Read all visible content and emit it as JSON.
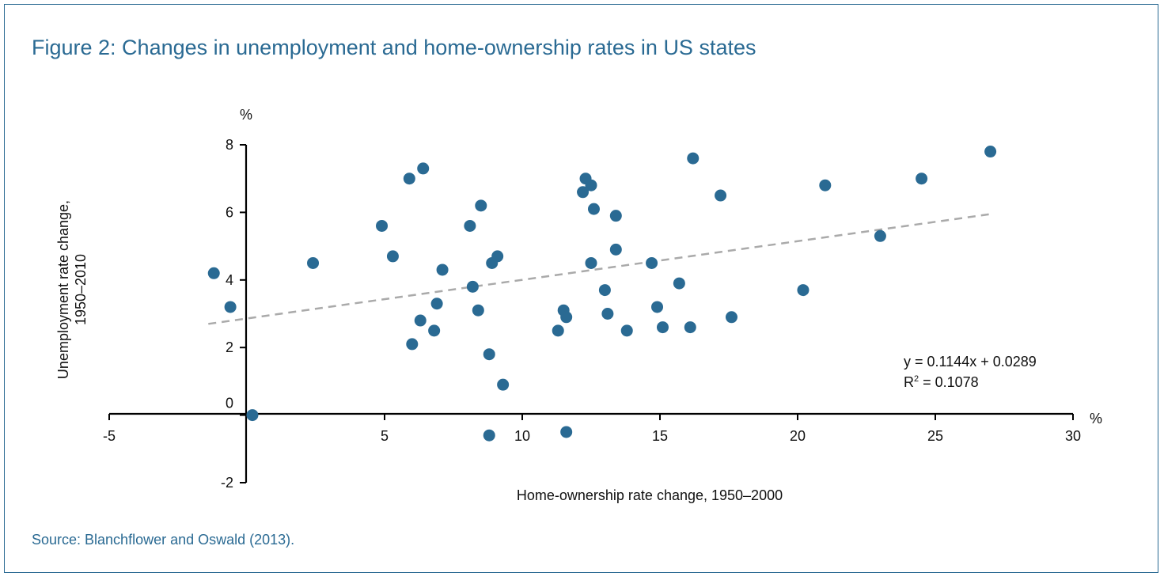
{
  "title": "Figure 2: Changes in unemployment and home-ownership rates in US states",
  "source": "Source: Blanchflower and Oswald (2013).",
  "colors": {
    "frame": "#2a6a93",
    "point": "#2a6a93",
    "trend": "#aaaaaa"
  },
  "chart_data": {
    "type": "scatter",
    "xlabel": "Home-ownership rate change, 1950–2000",
    "ylabel": [
      "Unemployment rate change,",
      "1950–2010"
    ],
    "x_unit": "%",
    "y_unit": "%",
    "xlim": [
      -5,
      30
    ],
    "ylim": [
      -2,
      8
    ],
    "x_ticks": [
      -5,
      5,
      10,
      15,
      20,
      25,
      30
    ],
    "y_ticks": [
      -2,
      0,
      2,
      4,
      6,
      8
    ],
    "trendline": {
      "equation": "y = 0.1144x + 0.0289",
      "r2_prefix": "R",
      "r2_sup": "2",
      "r2_value": " = 0.1078",
      "x_range": [
        -0.5,
        27
      ]
    },
    "points": [
      {
        "x": -1.2,
        "y": 4.2
      },
      {
        "x": -0.6,
        "y": 3.2
      },
      {
        "x": 0.2,
        "y": 0.0
      },
      {
        "x": 2.4,
        "y": 4.5
      },
      {
        "x": 4.9,
        "y": 5.6
      },
      {
        "x": 5.3,
        "y": 4.7
      },
      {
        "x": 5.9,
        "y": 7.0
      },
      {
        "x": 6.0,
        "y": 2.1
      },
      {
        "x": 6.3,
        "y": 2.8
      },
      {
        "x": 6.4,
        "y": 7.3
      },
      {
        "x": 6.8,
        "y": 2.5
      },
      {
        "x": 6.9,
        "y": 3.3
      },
      {
        "x": 7.1,
        "y": 4.3
      },
      {
        "x": 8.1,
        "y": 5.6
      },
      {
        "x": 8.2,
        "y": 3.8
      },
      {
        "x": 8.4,
        "y": 3.1
      },
      {
        "x": 8.5,
        "y": 6.2
      },
      {
        "x": 8.8,
        "y": 1.8
      },
      {
        "x": 8.8,
        "y": -0.6
      },
      {
        "x": 8.9,
        "y": 4.5
      },
      {
        "x": 9.1,
        "y": 4.7
      },
      {
        "x": 9.3,
        "y": 0.9
      },
      {
        "x": 11.3,
        "y": 2.5
      },
      {
        "x": 11.5,
        "y": 3.1
      },
      {
        "x": 11.6,
        "y": 2.9
      },
      {
        "x": 11.6,
        "y": -0.5
      },
      {
        "x": 12.2,
        "y": 6.6
      },
      {
        "x": 12.3,
        "y": 7.0
      },
      {
        "x": 12.5,
        "y": 6.8
      },
      {
        "x": 12.5,
        "y": 4.5
      },
      {
        "x": 12.6,
        "y": 6.1
      },
      {
        "x": 13.0,
        "y": 3.7
      },
      {
        "x": 13.1,
        "y": 3.0
      },
      {
        "x": 13.4,
        "y": 5.9
      },
      {
        "x": 13.4,
        "y": 4.9
      },
      {
        "x": 13.8,
        "y": 2.5
      },
      {
        "x": 14.7,
        "y": 4.5
      },
      {
        "x": 14.9,
        "y": 3.2
      },
      {
        "x": 15.1,
        "y": 2.6
      },
      {
        "x": 15.7,
        "y": 3.9
      },
      {
        "x": 16.1,
        "y": 2.6
      },
      {
        "x": 16.2,
        "y": 7.6
      },
      {
        "x": 17.2,
        "y": 6.5
      },
      {
        "x": 17.6,
        "y": 2.9
      },
      {
        "x": 20.2,
        "y": 3.7
      },
      {
        "x": 21.0,
        "y": 6.8
      },
      {
        "x": 23.0,
        "y": 5.3
      },
      {
        "x": 24.5,
        "y": 7.0
      },
      {
        "x": 27.0,
        "y": 7.8
      }
    ]
  }
}
